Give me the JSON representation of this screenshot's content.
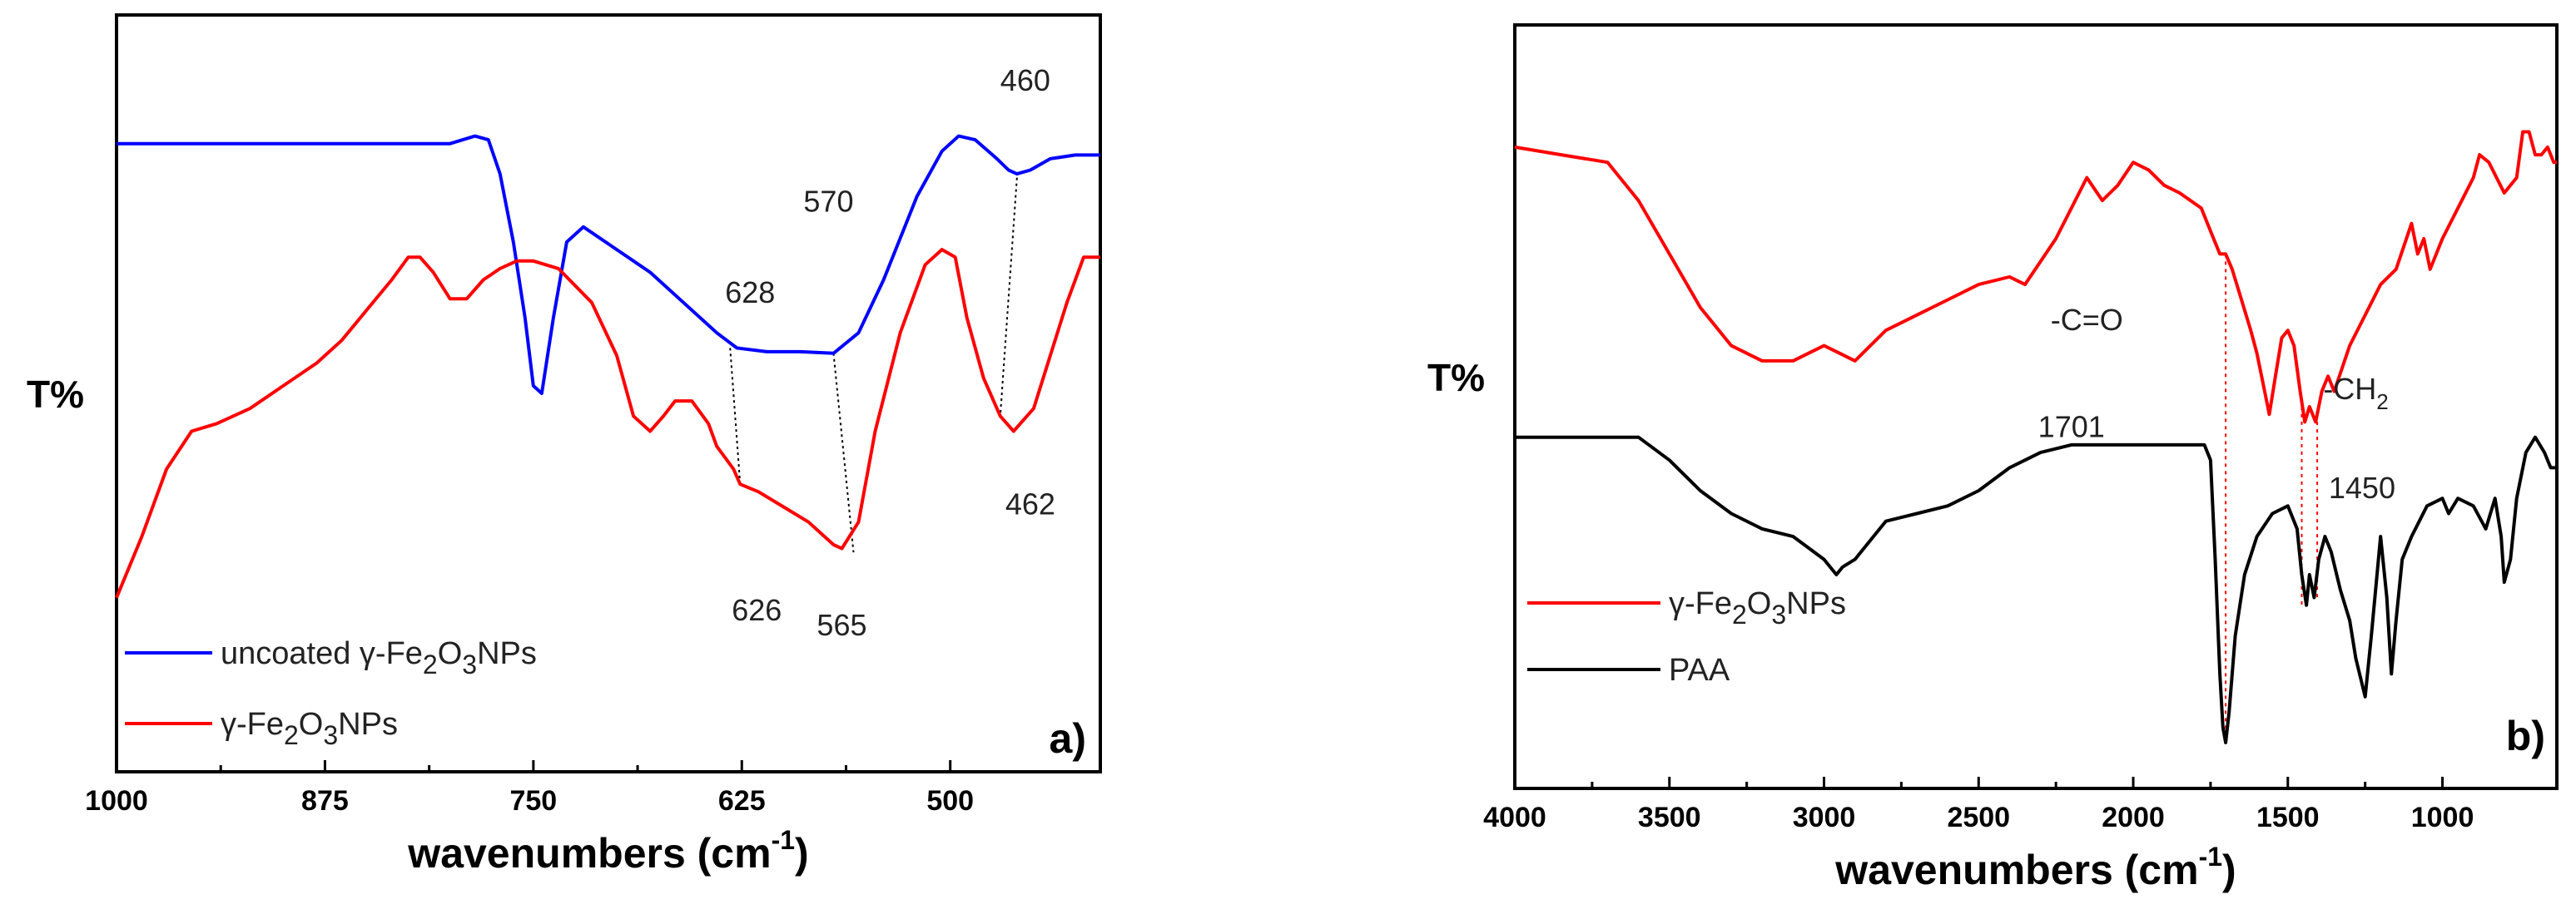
{
  "chart_data": [
    {
      "type": "line",
      "panel_label": "a)",
      "xlabel": "wavenumbers (cm",
      "xlabel_sup": "-1",
      "xlabel_end": ")",
      "ylabel": "T%",
      "xlim": [
        1000,
        410
      ],
      "ylim": [
        0,
        1
      ],
      "x_ticks": [
        1000,
        875,
        750,
        625,
        500
      ],
      "x_tick_labels": [
        "1000",
        "875",
        "750",
        "625",
        "500"
      ],
      "series": [
        {
          "name": "uncoated γ-Fe2O3NPs",
          "legend_prefix": "uncoated γ-Fe",
          "legend_sub1": "2",
          "legend_mid": "O",
          "legend_sub2": "3",
          "legend_suffix": "NPs",
          "color": "#0000ff",
          "x": [
            1000,
            900,
            800,
            785,
            777,
            770,
            762,
            755,
            750,
            745,
            738,
            730,
            720,
            700,
            680,
            660,
            640,
            628,
            610,
            590,
            570,
            555,
            540,
            520,
            505,
            495,
            485,
            472,
            465,
            460,
            452,
            440,
            425,
            410
          ],
          "y": [
            0.83,
            0.83,
            0.83,
            0.84,
            0.835,
            0.79,
            0.7,
            0.6,
            0.51,
            0.5,
            0.6,
            0.7,
            0.72,
            0.69,
            0.66,
            0.62,
            0.58,
            0.56,
            0.555,
            0.555,
            0.553,
            0.58,
            0.65,
            0.76,
            0.82,
            0.84,
            0.835,
            0.81,
            0.795,
            0.79,
            0.795,
            0.81,
            0.815,
            0.815
          ]
        },
        {
          "name": "γ-Fe2O3NPs",
          "legend_prefix": "γ-Fe",
          "legend_sub1": "2",
          "legend_mid": "O",
          "legend_sub2": "3",
          "legend_suffix": "NPs",
          "color": "#ff0000",
          "x": [
            1000,
            985,
            970,
            955,
            940,
            920,
            900,
            880,
            865,
            850,
            835,
            825,
            818,
            810,
            800,
            790,
            780,
            770,
            760,
            750,
            735,
            715,
            700,
            690,
            680,
            672,
            665,
            655,
            645,
            640,
            630,
            626,
            615,
            600,
            585,
            570,
            565,
            555,
            545,
            530,
            515,
            505,
            497,
            490,
            480,
            470,
            462,
            450,
            440,
            430,
            420,
            410
          ],
          "y": [
            0.23,
            0.31,
            0.4,
            0.45,
            0.46,
            0.48,
            0.51,
            0.54,
            0.57,
            0.61,
            0.65,
            0.68,
            0.68,
            0.66,
            0.625,
            0.625,
            0.65,
            0.665,
            0.675,
            0.675,
            0.665,
            0.62,
            0.55,
            0.47,
            0.45,
            0.47,
            0.49,
            0.49,
            0.46,
            0.43,
            0.4,
            0.38,
            0.37,
            0.35,
            0.33,
            0.3,
            0.295,
            0.33,
            0.45,
            0.58,
            0.67,
            0.69,
            0.68,
            0.6,
            0.52,
            0.47,
            0.45,
            0.48,
            0.55,
            0.62,
            0.68,
            0.68
          ]
        }
      ],
      "annotations": [
        {
          "text": "628",
          "x": 620,
          "y": 0.62
        },
        {
          "text": "570",
          "x": 573,
          "y": 0.74
        },
        {
          "text": "460",
          "x": 455,
          "y": 0.9
        },
        {
          "text": "626",
          "x": 616,
          "y": 0.2
        },
        {
          "text": "565",
          "x": 565,
          "y": 0.18
        },
        {
          "text": "462",
          "x": 452,
          "y": 0.34
        }
      ],
      "connectors": [
        {
          "x1": 632,
          "y1": 0.56,
          "x2": 626,
          "y2": 0.38
        },
        {
          "x1": 570,
          "y1": 0.553,
          "x2": 558,
          "y2": 0.29
        },
        {
          "x1": 460,
          "y1": 0.785,
          "x2": 470,
          "y2": 0.47
        }
      ]
    },
    {
      "type": "line",
      "panel_label": "b)",
      "xlabel": "wavenumbers (cm",
      "xlabel_sup": "-1",
      "xlabel_end": ")",
      "ylabel": "T%",
      "xlim": [
        4000,
        630
      ],
      "ylim": [
        0,
        1
      ],
      "x_ticks": [
        4000,
        3500,
        3000,
        2500,
        2000,
        1500,
        1000
      ],
      "x_tick_labels": [
        "4000",
        "3500",
        "3000",
        "2500",
        "2000",
        "1500",
        "1000"
      ],
      "series": [
        {
          "name": "γ-Fe2O3NPs",
          "legend_prefix": "γ-Fe",
          "legend_sub1": "2",
          "legend_mid": "O",
          "legend_sub2": "3",
          "legend_suffix": "NPs",
          "color": "#ff0000",
          "x": [
            4000,
            3850,
            3700,
            3600,
            3500,
            3400,
            3300,
            3200,
            3100,
            3000,
            2950,
            2900,
            2800,
            2700,
            2600,
            2500,
            2400,
            2350,
            2250,
            2200,
            2150,
            2100,
            2050,
            2000,
            1950,
            1900,
            1850,
            1780,
            1740,
            1720,
            1701,
            1680,
            1650,
            1620,
            1600,
            1580,
            1560,
            1540,
            1520,
            1500,
            1480,
            1460,
            1445,
            1430,
            1410,
            1390,
            1370,
            1350,
            1300,
            1250,
            1200,
            1150,
            1100,
            1080,
            1060,
            1040,
            1000,
            950,
            900,
            880,
            850,
            800,
            760,
            740,
            720,
            700,
            680,
            660,
            640,
            630
          ],
          "y": [
            0.84,
            0.83,
            0.82,
            0.77,
            0.7,
            0.63,
            0.58,
            0.56,
            0.56,
            0.58,
            0.57,
            0.56,
            0.6,
            0.62,
            0.64,
            0.66,
            0.67,
            0.66,
            0.72,
            0.76,
            0.8,
            0.77,
            0.79,
            0.82,
            0.81,
            0.79,
            0.78,
            0.76,
            0.72,
            0.7,
            0.7,
            0.68,
            0.64,
            0.6,
            0.57,
            0.53,
            0.49,
            0.54,
            0.59,
            0.6,
            0.58,
            0.52,
            0.48,
            0.5,
            0.48,
            0.52,
            0.54,
            0.52,
            0.58,
            0.62,
            0.66,
            0.68,
            0.74,
            0.7,
            0.72,
            0.68,
            0.72,
            0.76,
            0.8,
            0.83,
            0.82,
            0.78,
            0.8,
            0.86,
            0.86,
            0.83,
            0.83,
            0.84,
            0.82,
            0.82
          ]
        },
        {
          "name": "PAA",
          "legend_prefix": "PAA",
          "legend_sub1": "",
          "legend_mid": "",
          "legend_sub2": "",
          "legend_suffix": "",
          "color": "#000000",
          "x": [
            4000,
            3800,
            3600,
            3500,
            3400,
            3300,
            3200,
            3100,
            3000,
            2960,
            2940,
            2900,
            2800,
            2700,
            2600,
            2500,
            2400,
            2300,
            2200,
            2100,
            2000,
            1900,
            1800,
            1770,
            1750,
            1735,
            1720,
            1710,
            1701,
            1690,
            1670,
            1640,
            1600,
            1550,
            1500,
            1470,
            1455,
            1440,
            1430,
            1415,
            1400,
            1380,
            1360,
            1330,
            1300,
            1280,
            1250,
            1230,
            1200,
            1180,
            1165,
            1150,
            1130,
            1100,
            1050,
            1000,
            980,
            950,
            900,
            860,
            830,
            810,
            800,
            780,
            760,
            730,
            700,
            670,
            650,
            630
          ],
          "y": [
            0.46,
            0.46,
            0.46,
            0.43,
            0.39,
            0.36,
            0.34,
            0.33,
            0.3,
            0.28,
            0.29,
            0.3,
            0.35,
            0.36,
            0.37,
            0.39,
            0.42,
            0.44,
            0.45,
            0.45,
            0.45,
            0.45,
            0.45,
            0.45,
            0.43,
            0.3,
            0.15,
            0.08,
            0.06,
            0.1,
            0.2,
            0.28,
            0.33,
            0.36,
            0.37,
            0.34,
            0.28,
            0.24,
            0.28,
            0.25,
            0.3,
            0.33,
            0.31,
            0.26,
            0.22,
            0.17,
            0.12,
            0.2,
            0.33,
            0.25,
            0.15,
            0.22,
            0.3,
            0.33,
            0.37,
            0.38,
            0.36,
            0.38,
            0.37,
            0.34,
            0.38,
            0.33,
            0.27,
            0.3,
            0.38,
            0.44,
            0.46,
            0.44,
            0.42,
            0.42
          ]
        }
      ],
      "annotations": [
        {
          "text": "-C=O",
          "x": 2150,
          "y": 0.6
        },
        {
          "text": "1701",
          "x": 2200,
          "y": 0.46
        },
        {
          "text": "-CH",
          "x": 1280,
          "y": 0.51,
          "sub": "2"
        },
        {
          "text": "1450",
          "x": 1260,
          "y": 0.38
        }
      ],
      "connectors": [
        {
          "x1": 1701,
          "y1": 0.7,
          "x2": 1701,
          "y2": 0.06
        },
        {
          "x1": 1455,
          "y1": 0.51,
          "x2": 1455,
          "y2": 0.24
        },
        {
          "x1": 1405,
          "y1": 0.49,
          "x2": 1405,
          "y2": 0.25
        }
      ]
    }
  ]
}
